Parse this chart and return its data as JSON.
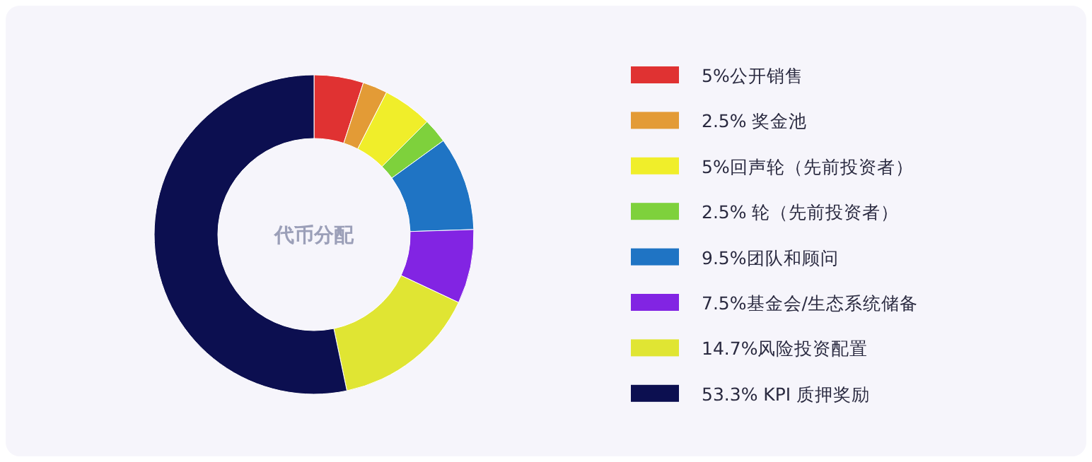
{
  "chart_data": {
    "type": "donut",
    "title": "代币分配",
    "categories": [
      "5%公开销售",
      "2.5% 奖金池",
      "5%回声轮（先前投资者）",
      "2.5% 轮（先前投资者）",
      "9.5%团队和顾问",
      "7.5%基金会/生态系统储备",
      "14.7%风险投资配置",
      "53.3% KPI 质押奖励"
    ],
    "values": [
      5,
      2.5,
      5,
      2.5,
      9.5,
      7.5,
      14.7,
      53.3
    ],
    "colors": [
      "#e03232",
      "#e39b36",
      "#f0ee2a",
      "#7ed13c",
      "#1f74c4",
      "#8224e3",
      "#e0e533",
      "#0c0f50"
    ],
    "legend": "right"
  }
}
